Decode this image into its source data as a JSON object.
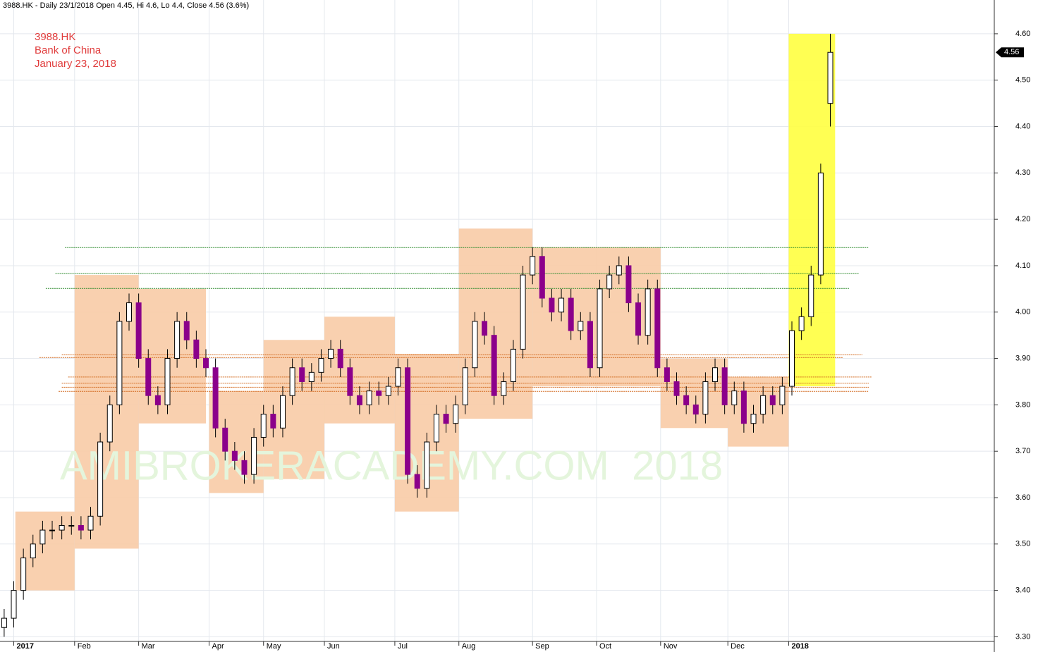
{
  "chart_data": {
    "type": "candlestick",
    "title": "3988.HK - Daily 23/1/2018 Open 4.45, Hi 4.6, Lo 4.4, Close 4.56 (3.6%)",
    "annotations": [
      "3988.HK",
      "Bank of China",
      "January 23, 2018"
    ],
    "watermark": "AMIBROKERACADEMY.COM  2018",
    "last_label": "4.56",
    "last_value": 4.56,
    "up_color": "#ffffff",
    "down_color": "#8b008b",
    "x": [
      0,
      3,
      6,
      9,
      12,
      15,
      18,
      21,
      24,
      27,
      30,
      33,
      36,
      39,
      42,
      45,
      48,
      51,
      54,
      57,
      60,
      63,
      66,
      69,
      72,
      75,
      78,
      81,
      84,
      87,
      90,
      93,
      96,
      99,
      102,
      105,
      108,
      111,
      114,
      117,
      120,
      123,
      126,
      129,
      132,
      135,
      138,
      141,
      144,
      147,
      150,
      153,
      156,
      159,
      162,
      165,
      168,
      171,
      174,
      177,
      180,
      183,
      186,
      189,
      192,
      195,
      198,
      201,
      204,
      207,
      210,
      213,
      216,
      219,
      222,
      225,
      228,
      231,
      234,
      237,
      240,
      243,
      246,
      249,
      252,
      255,
      258
    ],
    "open": [
      3.32,
      3.34,
      3.4,
      3.47,
      3.5,
      3.53,
      3.53,
      3.54,
      3.54,
      3.53,
      3.56,
      3.72,
      3.8,
      3.98,
      4.02,
      3.9,
      3.82,
      3.8,
      3.9,
      3.98,
      3.94,
      3.9,
      3.88,
      3.75,
      3.7,
      3.68,
      3.65,
      3.73,
      3.78,
      3.75,
      3.82,
      3.88,
      3.85,
      3.87,
      3.9,
      3.92,
      3.88,
      3.82,
      3.8,
      3.83,
      3.82,
      3.84,
      3.88,
      3.65,
      3.62,
      3.72,
      3.78,
      3.76,
      3.8,
      3.88,
      3.98,
      3.95,
      3.82,
      3.85,
      3.92,
      4.08,
      4.12,
      4.03,
      4.0,
      4.03,
      3.96,
      3.98,
      3.88,
      4.05,
      4.08,
      4.1,
      4.02,
      3.95,
      4.05,
      3.88,
      3.85,
      3.82,
      3.8,
      3.78,
      3.85,
      3.88,
      3.8,
      3.83,
      3.76,
      3.78,
      3.82,
      3.8,
      3.84,
      3.96,
      3.99,
      4.08,
      4.45
    ],
    "high": [
      3.36,
      3.42,
      3.49,
      3.52,
      3.55,
      3.55,
      3.56,
      3.56,
      3.56,
      3.58,
      3.74,
      3.82,
      4.0,
      4.04,
      4.04,
      3.92,
      3.84,
      3.92,
      4.0,
      4.0,
      3.96,
      3.92,
      3.9,
      3.77,
      3.72,
      3.7,
      3.75,
      3.8,
      3.8,
      3.84,
      3.9,
      3.9,
      3.89,
      3.92,
      3.94,
      3.94,
      3.9,
      3.84,
      3.85,
      3.85,
      3.86,
      3.9,
      3.9,
      3.67,
      3.74,
      3.8,
      3.8,
      3.82,
      3.9,
      4.0,
      4.0,
      3.97,
      3.87,
      3.94,
      4.1,
      4.14,
      4.14,
      4.05,
      4.05,
      4.05,
      4.0,
      4.0,
      4.07,
      4.1,
      4.12,
      4.12,
      4.04,
      4.07,
      4.07,
      3.9,
      3.87,
      3.84,
      3.82,
      3.87,
      3.9,
      3.9,
      3.85,
      3.85,
      3.8,
      3.84,
      3.84,
      3.86,
      3.98,
      4.01,
      4.1,
      4.32,
      4.6
    ],
    "low": [
      3.3,
      3.32,
      3.38,
      3.45,
      3.48,
      3.51,
      3.51,
      3.52,
      3.51,
      3.51,
      3.54,
      3.7,
      3.78,
      3.96,
      3.88,
      3.8,
      3.78,
      3.78,
      3.88,
      3.92,
      3.88,
      3.86,
      3.73,
      3.68,
      3.66,
      3.63,
      3.63,
      3.71,
      3.73,
      3.73,
      3.8,
      3.83,
      3.83,
      3.85,
      3.88,
      3.86,
      3.8,
      3.78,
      3.78,
      3.8,
      3.8,
      3.82,
      3.63,
      3.6,
      3.6,
      3.7,
      3.74,
      3.74,
      3.78,
      3.86,
      3.93,
      3.8,
      3.8,
      3.83,
      3.9,
      4.06,
      4.01,
      3.98,
      3.98,
      3.94,
      3.94,
      3.86,
      3.86,
      4.03,
      4.06,
      4.0,
      3.93,
      3.93,
      3.86,
      3.83,
      3.8,
      3.78,
      3.76,
      3.76,
      3.83,
      3.78,
      3.78,
      3.74,
      3.74,
      3.76,
      3.78,
      3.78,
      3.82,
      3.94,
      3.97,
      4.06,
      4.4
    ],
    "close": [
      3.34,
      3.4,
      3.47,
      3.5,
      3.53,
      3.53,
      3.54,
      3.54,
      3.53,
      3.56,
      3.72,
      3.8,
      3.98,
      4.02,
      3.9,
      3.82,
      3.8,
      3.9,
      3.98,
      3.94,
      3.9,
      3.88,
      3.75,
      3.7,
      3.68,
      3.65,
      3.73,
      3.78,
      3.75,
      3.82,
      3.88,
      3.85,
      3.87,
      3.9,
      3.92,
      3.88,
      3.82,
      3.8,
      3.83,
      3.82,
      3.84,
      3.88,
      3.65,
      3.62,
      3.72,
      3.78,
      3.76,
      3.8,
      3.88,
      3.98,
      3.95,
      3.82,
      3.85,
      3.92,
      4.08,
      4.12,
      4.03,
      4.0,
      4.03,
      3.96,
      3.98,
      3.88,
      4.05,
      4.08,
      4.1,
      4.02,
      3.95,
      4.05,
      3.88,
      3.85,
      3.82,
      3.8,
      3.78,
      3.85,
      3.88,
      3.8,
      3.83,
      3.76,
      3.78,
      3.82,
      3.8,
      3.84,
      3.96,
      3.99,
      4.08,
      4.3,
      4.56
    ],
    "boxes": [
      {
        "x0": 3.5,
        "x1": 22,
        "y0": 3.4,
        "y1": 3.57,
        "color": "#f8cba6"
      },
      {
        "x0": 22,
        "x1": 42,
        "y0": 3.49,
        "y1": 4.08,
        "color": "#f8cba6"
      },
      {
        "x0": 42,
        "x1": 63,
        "y0": 3.76,
        "y1": 4.05,
        "color": "#f8cba6"
      },
      {
        "x0": 64,
        "x1": 81,
        "y0": 3.61,
        "y1": 3.83,
        "color": "#f8cba6"
      },
      {
        "x0": 81,
        "x1": 100,
        "y0": 3.64,
        "y1": 3.94,
        "color": "#f8cba6"
      },
      {
        "x0": 100,
        "x1": 122,
        "y0": 3.76,
        "y1": 3.99,
        "color": "#f8cba6"
      },
      {
        "x0": 122,
        "x1": 142,
        "y0": 3.57,
        "y1": 3.91,
        "color": "#f8cba6"
      },
      {
        "x0": 142,
        "x1": 165,
        "y0": 3.77,
        "y1": 4.18,
        "color": "#f8cba6"
      },
      {
        "x0": 165,
        "x1": 205,
        "y0": 3.84,
        "y1": 4.14,
        "color": "#f8cba6"
      },
      {
        "x0": 205,
        "x1": 226,
        "y0": 3.75,
        "y1": 3.9,
        "color": "#f8cba6"
      },
      {
        "x0": 226,
        "x1": 245,
        "y0": 3.71,
        "y1": 3.86,
        "color": "#f8cba6"
      },
      {
        "x0": 245,
        "x1": 259.5,
        "y0": 3.84,
        "y1": 4.6,
        "color": "#ffff40"
      }
    ],
    "levels": [
      {
        "y": 4.139,
        "x0": 19,
        "x1": 270,
        "color": "#2e8b2e"
      },
      {
        "y": 4.083,
        "x0": 16,
        "x1": 267,
        "color": "#2e8b2e"
      },
      {
        "y": 4.051,
        "x0": 13,
        "x1": 264,
        "color": "#2e8b2e"
      },
      {
        "y": 3.908,
        "x0": 18,
        "x1": 268,
        "color": "#d2691e"
      },
      {
        "y": 3.902,
        "x0": 11,
        "x1": 262,
        "color": "#d2691e"
      },
      {
        "y": 3.86,
        "x0": 20,
        "x1": 271,
        "color": "#d2691e"
      },
      {
        "y": 3.847,
        "x0": 18,
        "x1": 270,
        "color": "#d2691e"
      },
      {
        "y": 3.838,
        "x0": 18,
        "x1": 270,
        "color": "#d2691e"
      },
      {
        "y": 3.829,
        "x0": 17,
        "x1": 270,
        "color": "#d2691e"
      }
    ],
    "xlim": [
      -1.3,
      309.2
    ],
    "ylim": [
      3.29,
      4.65
    ],
    "xticks": [
      {
        "value": 3,
        "label": "2017"
      },
      {
        "value": 22,
        "label": "Feb"
      },
      {
        "value": 42,
        "label": "Mar"
      },
      {
        "value": 64,
        "label": "Apr"
      },
      {
        "value": 81,
        "label": "May"
      },
      {
        "value": 100,
        "label": "Jun"
      },
      {
        "value": 122,
        "label": "Jul"
      },
      {
        "value": 142,
        "label": "Aug"
      },
      {
        "value": 165,
        "label": "Sep"
      },
      {
        "value": 185,
        "label": "Oct"
      },
      {
        "value": 205,
        "label": "Nov"
      },
      {
        "value": 226,
        "label": "Dec"
      },
      {
        "value": 245,
        "label": "2018"
      }
    ],
    "yticks": [
      {
        "value": 3.3,
        "label": "3.30"
      },
      {
        "value": 3.4,
        "label": "3.40"
      },
      {
        "value": 3.5,
        "label": "3.50"
      },
      {
        "value": 3.6,
        "label": "3.60"
      },
      {
        "value": 3.7,
        "label": "3.70"
      },
      {
        "value": 3.8,
        "label": "3.80"
      },
      {
        "value": 3.9,
        "label": "3.90"
      },
      {
        "value": 4.0,
        "label": "4.00"
      },
      {
        "value": 4.1,
        "label": "4.10"
      },
      {
        "value": 4.2,
        "label": "4.20"
      },
      {
        "value": 4.3,
        "label": "4.30"
      },
      {
        "value": 4.4,
        "label": "4.40"
      },
      {
        "value": 4.5,
        "label": "4.50"
      },
      {
        "value": 4.6,
        "label": "4.60"
      }
    ],
    "grid": true
  }
}
